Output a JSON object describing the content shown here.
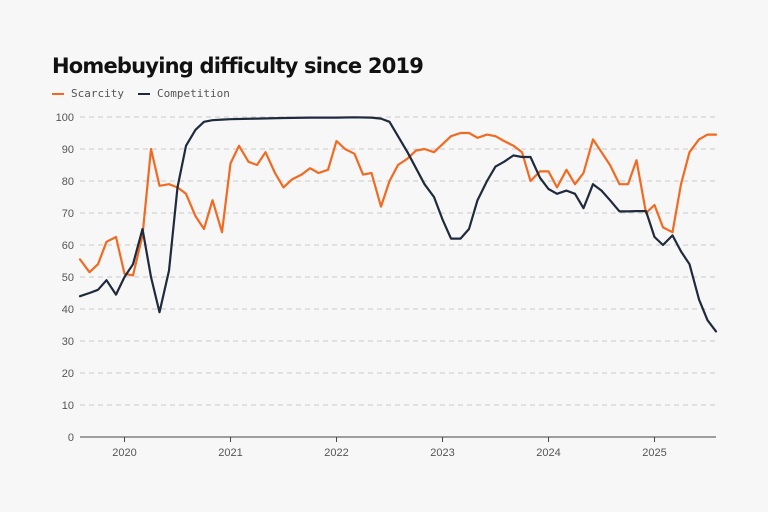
{
  "chart_data": {
    "type": "line",
    "title": "Homebuying difficulty since 2019",
    "xlabel": "",
    "ylabel": "",
    "x_tick_labels": [
      "2020",
      "2021",
      "2022",
      "2023",
      "2024",
      "2025"
    ],
    "x_ticks": [
      2020,
      2021,
      2022,
      2023,
      2024,
      2025
    ],
    "xlim": [
      2019.58,
      2025.58
    ],
    "ylim": [
      0,
      100
    ],
    "y_ticks": [
      0,
      10,
      20,
      30,
      40,
      50,
      60,
      70,
      80,
      90,
      100
    ],
    "grid": true,
    "legend_position": "top-left",
    "series": [
      {
        "name": "Scarcity",
        "color": "#f26a21",
        "x": [
          2019.58,
          2019.67,
          2019.75,
          2019.83,
          2019.92,
          2020.0,
          2020.08,
          2020.17,
          2020.25,
          2020.33,
          2020.42,
          2020.5,
          2020.58,
          2020.67,
          2020.75,
          2020.83,
          2020.92,
          2021.0,
          2021.08,
          2021.17,
          2021.25,
          2021.33,
          2021.42,
          2021.5,
          2021.58,
          2021.67,
          2021.75,
          2021.83,
          2021.92,
          2022.0,
          2022.08,
          2022.17,
          2022.25,
          2022.33,
          2022.42,
          2022.5,
          2022.58,
          2022.67,
          2022.75,
          2022.83,
          2022.92,
          2023.0,
          2023.08,
          2023.17,
          2023.25,
          2023.33,
          2023.42,
          2023.5,
          2023.58,
          2023.67,
          2023.75,
          2023.83,
          2023.92,
          2024.0,
          2024.08,
          2024.17,
          2024.25,
          2024.33,
          2024.42,
          2024.5,
          2024.58,
          2024.67,
          2024.75,
          2024.83,
          2024.92,
          2025.0,
          2025.08,
          2025.17,
          2025.25,
          2025.33,
          2025.42,
          2025.5,
          2025.58
        ],
        "y": [
          55.5,
          51.5,
          54,
          61,
          62.5,
          51,
          50.5,
          63,
          90,
          78.5,
          79,
          78,
          76,
          69,
          65,
          74,
          64,
          85.5,
          91,
          86,
          85,
          89,
          82.5,
          78,
          80.5,
          82,
          84,
          82.5,
          83.5,
          92.5,
          90,
          88.5,
          82,
          82.5,
          72,
          80,
          85,
          87,
          89.5,
          90,
          89,
          91.5,
          94,
          95,
          95,
          93.5,
          94.5,
          94,
          92.5,
          91,
          89,
          80,
          83,
          83,
          78,
          83.5,
          79,
          82.5,
          93,
          89,
          85,
          79,
          79,
          86.5,
          70,
          72.5,
          65.5,
          64,
          79,
          89,
          93,
          94.5,
          94.5
        ]
      },
      {
        "name": "Competition",
        "color": "#1f2a3d",
        "x": [
          2019.58,
          2019.67,
          2019.75,
          2019.83,
          2019.92,
          2020.0,
          2020.08,
          2020.17,
          2020.25,
          2020.33,
          2020.42,
          2020.5,
          2020.58,
          2020.67,
          2020.75,
          2020.83,
          2020.92,
          2021.0,
          2021.25,
          2021.5,
          2021.75,
          2022.0,
          2022.17,
          2022.33,
          2022.42,
          2022.5,
          2022.58,
          2022.67,
          2022.75,
          2022.83,
          2022.92,
          2023.0,
          2023.08,
          2023.17,
          2023.25,
          2023.33,
          2023.42,
          2023.5,
          2023.58,
          2023.67,
          2023.75,
          2023.83,
          2023.92,
          2024.0,
          2024.08,
          2024.17,
          2024.25,
          2024.33,
          2024.42,
          2024.5,
          2024.58,
          2024.67,
          2024.75,
          2024.83,
          2024.92,
          2025.0,
          2025.08,
          2025.17,
          2025.25,
          2025.33,
          2025.42,
          2025.5,
          2025.58
        ],
        "y": [
          44,
          45,
          46,
          49,
          44.5,
          50,
          54,
          65,
          50,
          39,
          52,
          78,
          91,
          96,
          98.5,
          99,
          99.2,
          99.3,
          99.5,
          99.7,
          99.8,
          99.8,
          99.9,
          99.8,
          99.5,
          98.5,
          94,
          89,
          84,
          79,
          75,
          68,
          62,
          62,
          65,
          74,
          80,
          84.5,
          86,
          88,
          87.5,
          87.5,
          81,
          77.5,
          76,
          77,
          76,
          71.5,
          79,
          77,
          74,
          70.5,
          70.5,
          70.6,
          70.6,
          62.5,
          60,
          63,
          58,
          54,
          43,
          36.5,
          33
        ]
      }
    ]
  }
}
